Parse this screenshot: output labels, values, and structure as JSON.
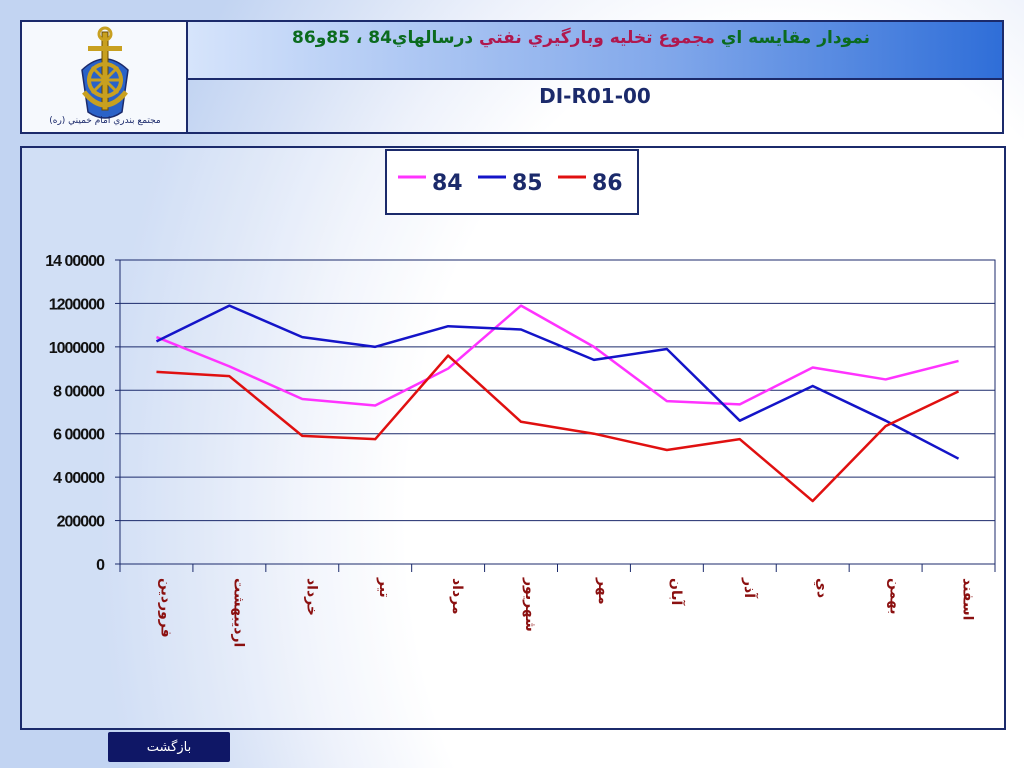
{
  "header": {
    "title_part1": "نمودار مقايسه اي",
    "title_part2": "مجموع تخليه وبارگيري نفتي",
    "title_part3": "درسالهاي84 ، 85و86",
    "doc_code": "DI-R01-00",
    "logo_caption": "مجتمع بندري امام خميني (ره)"
  },
  "footer": {
    "back_label": "بازگشت"
  },
  "colors": {
    "s84": "#ff33ff",
    "s85": "#1414c8",
    "s86": "#e01010",
    "grid": "#1b2a6b",
    "frame": "#1b2a6b",
    "xlabel": "#8b1010"
  },
  "chart_data": {
    "type": "line",
    "categories": [
      "فروردين",
      "ارديبهشت",
      "خرداد",
      "تير",
      "مرداد",
      "شهريور",
      "مهر",
      "آبان",
      "آذر",
      "دي",
      "بهمن",
      "اسفند"
    ],
    "y_tick_labels": [
      "0",
      "200000",
      "4 00000",
      "6 00000",
      "8 00000",
      "1000000",
      "1200000",
      "14 00000"
    ],
    "ylim": [
      0,
      1400000
    ],
    "y_ticks": [
      0,
      200000,
      400000,
      600000,
      800000,
      1000000,
      1200000,
      1400000
    ],
    "grid": true,
    "legend_position": "top-center",
    "series": [
      {
        "name": "84",
        "color": "#ff33ff",
        "values": [
          1045000,
          910000,
          760000,
          730000,
          900000,
          1190000,
          1000000,
          750000,
          735000,
          905000,
          850000,
          935000
        ]
      },
      {
        "name": "85",
        "color": "#1414c8",
        "values": [
          1025000,
          1190000,
          1045000,
          1000000,
          1095000,
          1080000,
          940000,
          990000,
          660000,
          820000,
          660000,
          485000
        ]
      },
      {
        "name": "86",
        "color": "#e01010",
        "values": [
          885000,
          865000,
          590000,
          575000,
          960000,
          655000,
          600000,
          525000,
          575000,
          290000,
          635000,
          795000
        ]
      }
    ]
  }
}
